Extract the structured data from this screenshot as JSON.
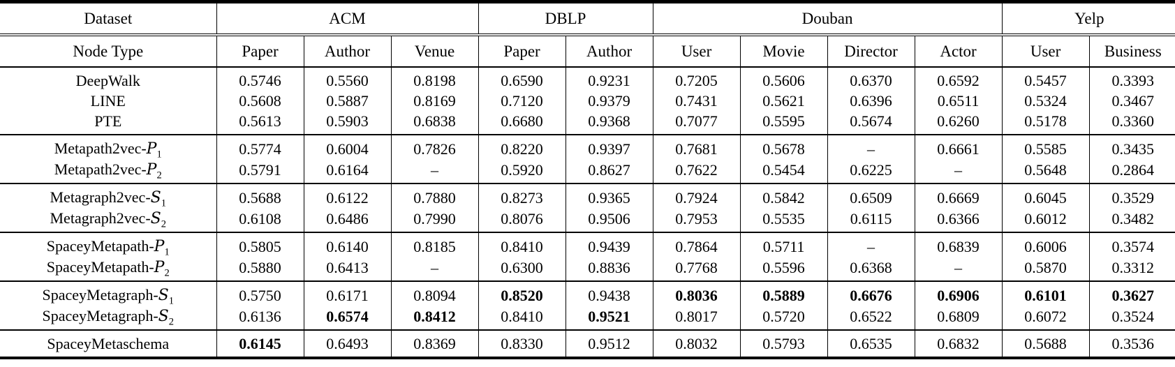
{
  "table": {
    "header_groups": [
      {
        "label": "Dataset",
        "colspan": 1
      },
      {
        "label": "ACM",
        "colspan": 3
      },
      {
        "label": "DBLP",
        "colspan": 2
      },
      {
        "label": "Douban",
        "colspan": 4
      },
      {
        "label": "Yelp",
        "colspan": 2
      }
    ],
    "subheader": [
      "Node Type",
      "Paper",
      "Author",
      "Venue",
      "Paper",
      "Author",
      "User",
      "Movie",
      "Director",
      "Actor",
      "User",
      "Business"
    ],
    "dash": "–",
    "text_color": "#000000",
    "rule_color": "#000000",
    "groups": [
      {
        "rows": [
          {
            "label": {
              "text": "DeepWalk"
            },
            "values": [
              "0.5746",
              "0.5560",
              "0.8198",
              "0.6590",
              "0.9231",
              "0.7205",
              "0.5606",
              "0.6370",
              "0.6592",
              "0.5457",
              "0.3393"
            ],
            "bold": []
          },
          {
            "label": {
              "text": "LINE"
            },
            "values": [
              "0.5608",
              "0.5887",
              "0.8169",
              "0.7120",
              "0.9379",
              "0.7431",
              "0.5621",
              "0.6396",
              "0.6511",
              "0.5324",
              "0.3467"
            ],
            "bold": []
          },
          {
            "label": {
              "text": "PTE"
            },
            "values": [
              "0.5613",
              "0.5903",
              "0.6838",
              "0.6680",
              "0.9368",
              "0.7077",
              "0.5595",
              "0.5674",
              "0.6260",
              "0.5178",
              "0.3360"
            ],
            "bold": []
          }
        ]
      },
      {
        "rows": [
          {
            "label": {
              "text": "Metapath2vec-",
              "cal": "P",
              "sub": "1"
            },
            "values": [
              "0.5774",
              "0.6004",
              "0.7826",
              "0.8220",
              "0.9397",
              "0.7681",
              "0.5678",
              "–",
              "0.6661",
              "0.5585",
              "0.3435"
            ],
            "bold": []
          },
          {
            "label": {
              "text": "Metapath2vec-",
              "cal": "P",
              "sub": "2"
            },
            "values": [
              "0.5791",
              "0.6164",
              "–",
              "0.5920",
              "0.8627",
              "0.7622",
              "0.5454",
              "0.6225",
              "–",
              "0.5648",
              "0.2864"
            ],
            "bold": []
          }
        ]
      },
      {
        "rows": [
          {
            "label": {
              "text": "Metagraph2vec-",
              "cal": "S",
              "sub": "1"
            },
            "values": [
              "0.5688",
              "0.6122",
              "0.7880",
              "0.8273",
              "0.9365",
              "0.7924",
              "0.5842",
              "0.6509",
              "0.6669",
              "0.6045",
              "0.3529"
            ],
            "bold": []
          },
          {
            "label": {
              "text": "Metagraph2vec-",
              "cal": "S",
              "sub": "2"
            },
            "values": [
              "0.6108",
              "0.6486",
              "0.7990",
              "0.8076",
              "0.9506",
              "0.7953",
              "0.5535",
              "0.6115",
              "0.6366",
              "0.6012",
              "0.3482"
            ],
            "bold": []
          }
        ]
      },
      {
        "rows": [
          {
            "label": {
              "text": "SpaceyMetapath-",
              "cal": "P",
              "sub": "1"
            },
            "values": [
              "0.5805",
              "0.6140",
              "0.8185",
              "0.8410",
              "0.9439",
              "0.7864",
              "0.5711",
              "–",
              "0.6839",
              "0.6006",
              "0.3574"
            ],
            "bold": []
          },
          {
            "label": {
              "text": "SpaceyMetapath-",
              "cal": "P",
              "sub": "2"
            },
            "values": [
              "0.5880",
              "0.6413",
              "–",
              "0.6300",
              "0.8836",
              "0.7768",
              "0.5596",
              "0.6368",
              "–",
              "0.5870",
              "0.3312"
            ],
            "bold": []
          }
        ]
      },
      {
        "rows": [
          {
            "label": {
              "text": "SpaceyMetagraph-",
              "cal": "S",
              "sub": "1"
            },
            "values": [
              "0.5750",
              "0.6171",
              "0.8094",
              "0.8520",
              "0.9438",
              "0.8036",
              "0.5889",
              "0.6676",
              "0.6906",
              "0.6101",
              "0.3627"
            ],
            "bold": [
              3,
              5,
              6,
              7,
              8,
              9,
              10
            ]
          },
          {
            "label": {
              "text": "SpaceyMetagraph-",
              "cal": "S",
              "sub": "2"
            },
            "values": [
              "0.6136",
              "0.6574",
              "0.8412",
              "0.8410",
              "0.9521",
              "0.8017",
              "0.5720",
              "0.6522",
              "0.6809",
              "0.6072",
              "0.3524"
            ],
            "bold": [
              1,
              2,
              4
            ]
          }
        ]
      },
      {
        "rows": [
          {
            "label": {
              "text": "SpaceyMetaschema"
            },
            "values": [
              "0.6145",
              "0.6493",
              "0.8369",
              "0.8330",
              "0.9512",
              "0.8032",
              "0.5793",
              "0.6535",
              "0.6832",
              "0.5688",
              "0.3536"
            ],
            "bold": [
              0
            ]
          }
        ]
      }
    ]
  }
}
